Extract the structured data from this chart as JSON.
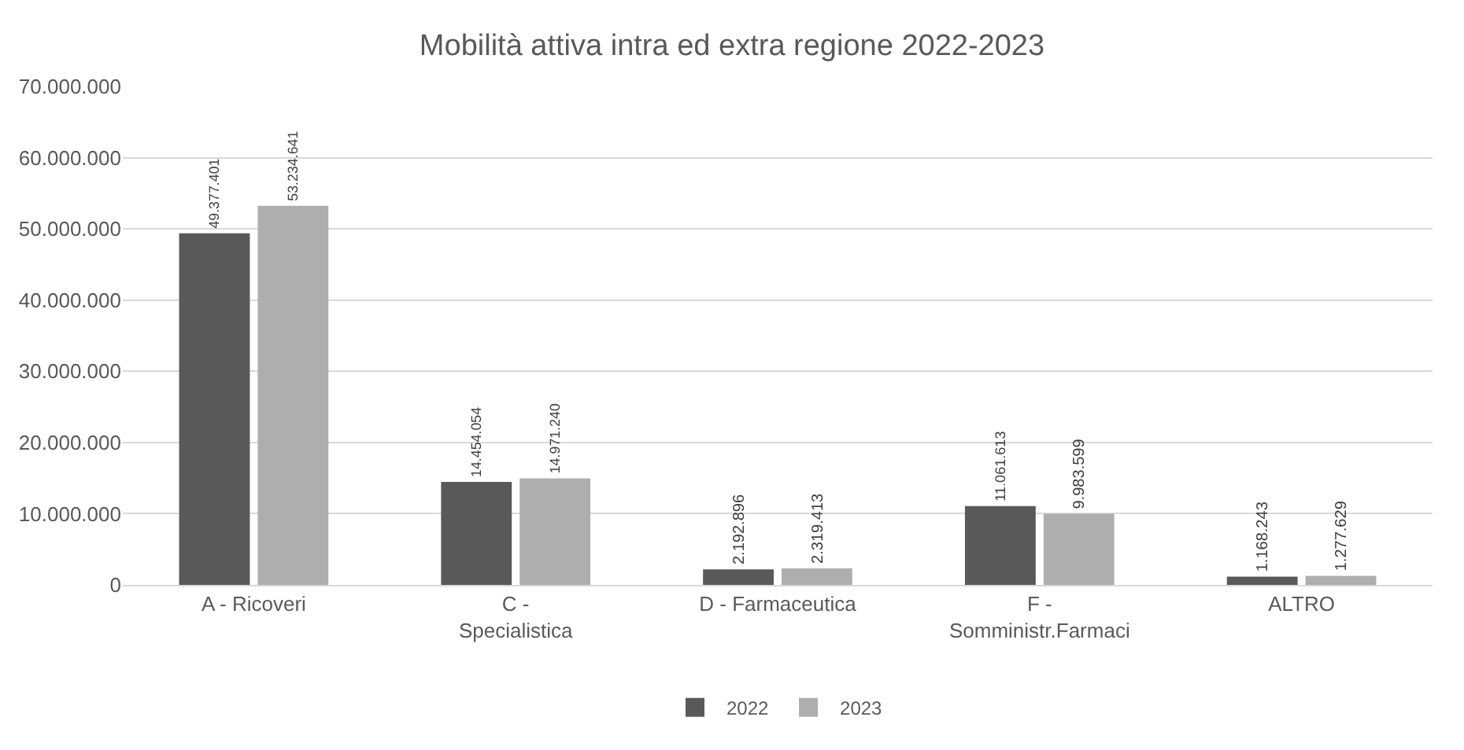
{
  "chart_data": {
    "type": "bar",
    "title": "Mobilità attiva intra ed extra regione 2022-2023",
    "categories": [
      "A - Ricoveri",
      "C - Specialistica",
      "D - Farmaceutica",
      "F - Somministr.Farmaci",
      "ALTRO"
    ],
    "series": [
      {
        "name": "2022",
        "color": "#595959",
        "values": [
          49377401,
          14454054,
          2192896,
          11061613,
          1168243
        ],
        "value_labels": [
          "49.377.401",
          "14.454.054",
          "2.192.896",
          "11.061.613",
          "1.168.243"
        ]
      },
      {
        "name": "2023",
        "color": "#aeaeae",
        "values": [
          53234641,
          14971240,
          2319413,
          9983599,
          1277629
        ],
        "value_labels": [
          "53.234.641",
          "14.971.240",
          "2.319.413",
          "9.983.599",
          "1.277.629"
        ]
      }
    ],
    "ylim": [
      0,
      70000000
    ],
    "yticks": [
      {
        "value": 0,
        "label": "0"
      },
      {
        "value": 10000000,
        "label": "10.000.000"
      },
      {
        "value": 20000000,
        "label": "20.000.000"
      },
      {
        "value": 30000000,
        "label": "30.000.000"
      },
      {
        "value": 40000000,
        "label": "40.000.000"
      },
      {
        "value": 50000000,
        "label": "50.000.000"
      },
      {
        "value": 60000000,
        "label": "60.000.000"
      },
      {
        "value": 70000000,
        "label": "70.000.000"
      }
    ],
    "grid": "y",
    "legend": "bottom"
  }
}
